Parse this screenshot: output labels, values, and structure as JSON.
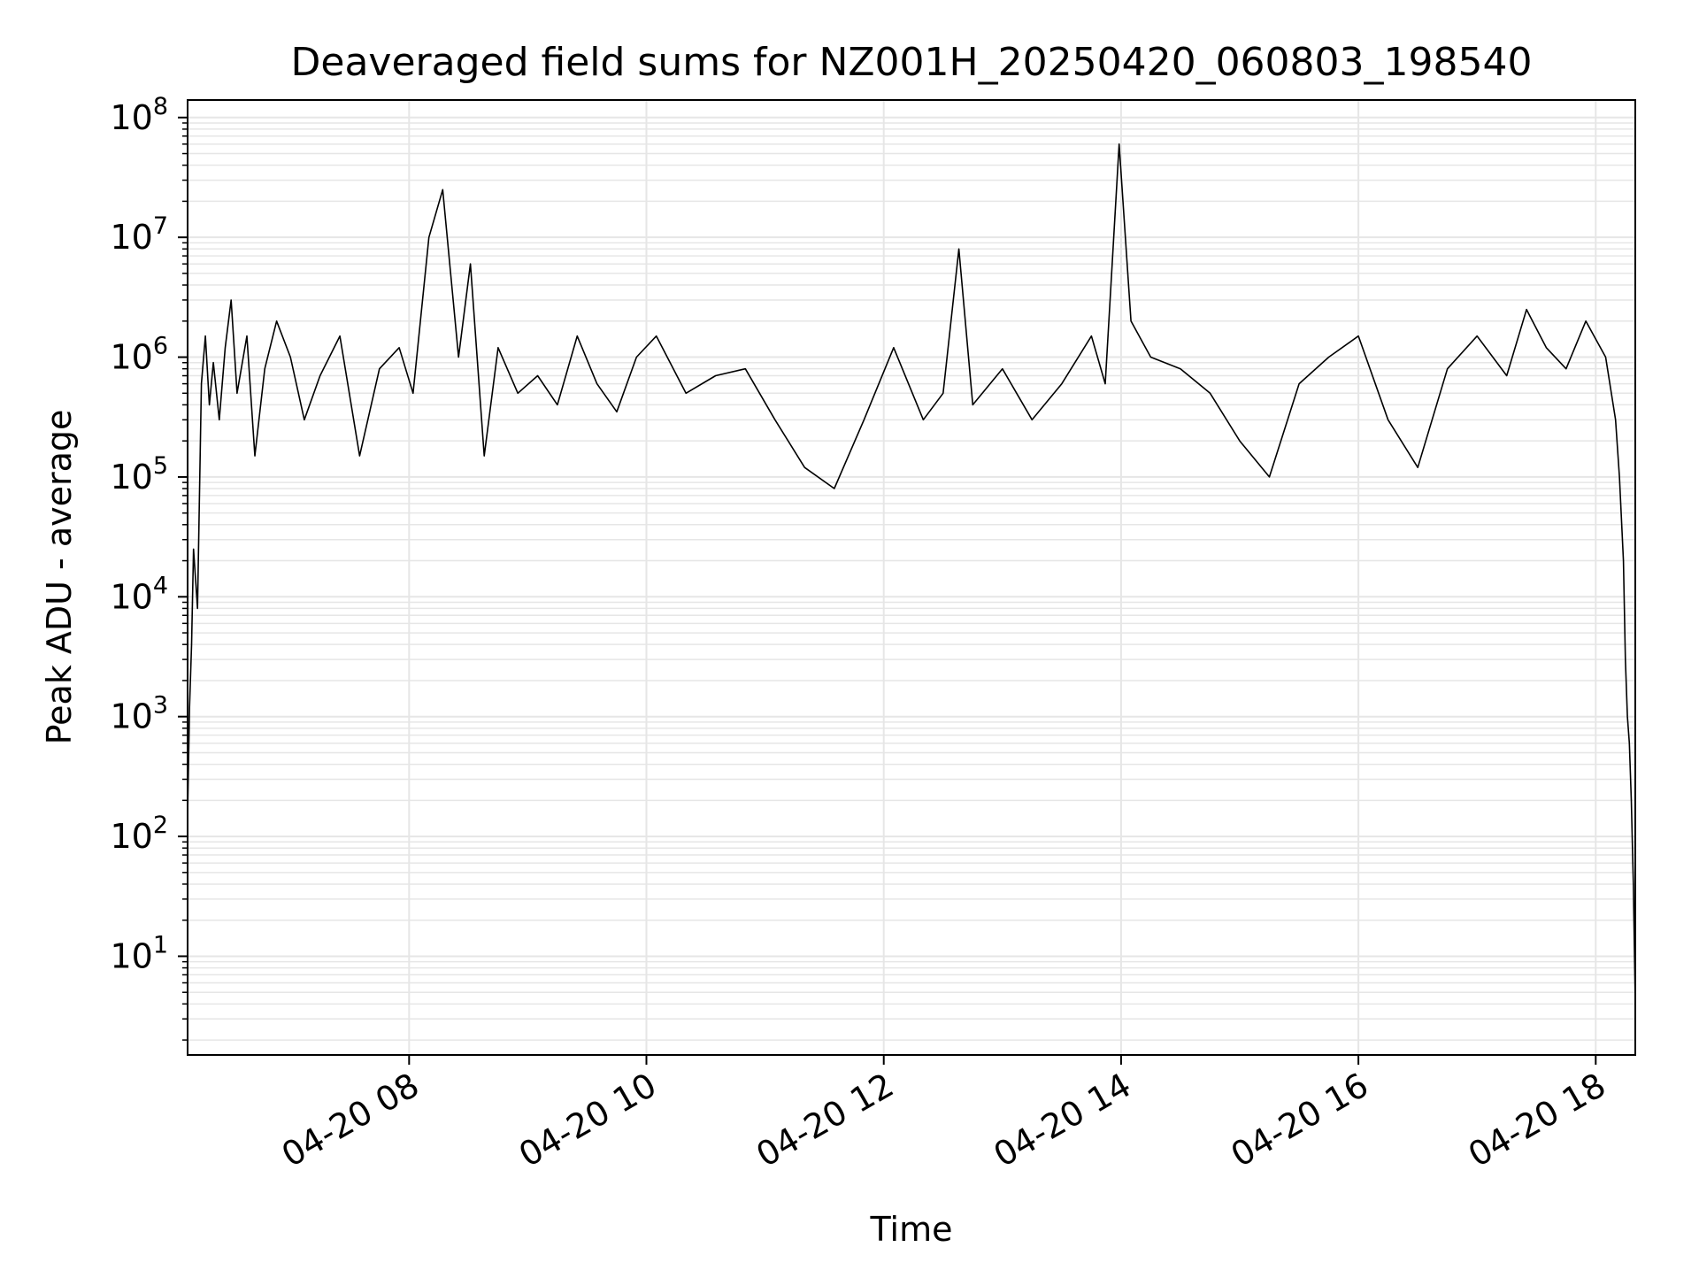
{
  "chart_data": {
    "type": "line",
    "title": "Deaveraged field sums for NZ001H_20250420_060803_198540",
    "xlabel": "Time",
    "ylabel": "Peak ADU - average",
    "yscale": "log",
    "ylim": [
      1.5,
      140000000
    ],
    "xlim": [
      "2025-04-20 06:08",
      "2025-04-20 18:20"
    ],
    "grid": true,
    "legend": "none",
    "colors": {
      "line": "#000000",
      "grid": "#e6e6e6",
      "axes": "#000000"
    },
    "x_ticks": [
      {
        "at": "2025-04-20 08:00",
        "label": "04-20 08"
      },
      {
        "at": "2025-04-20 10:00",
        "label": "04-20 10"
      },
      {
        "at": "2025-04-20 12:00",
        "label": "04-20 12"
      },
      {
        "at": "2025-04-20 14:00",
        "label": "04-20 14"
      },
      {
        "at": "2025-04-20 16:00",
        "label": "04-20 16"
      },
      {
        "at": "2025-04-20 18:00",
        "label": "04-20 18"
      }
    ],
    "y_ticks": [
      {
        "value": 10,
        "base": "10",
        "exp": "1"
      },
      {
        "value": 100,
        "base": "10",
        "exp": "2"
      },
      {
        "value": 1000,
        "base": "10",
        "exp": "3"
      },
      {
        "value": 10000,
        "base": "10",
        "exp": "4"
      },
      {
        "value": 100000,
        "base": "10",
        "exp": "5"
      },
      {
        "value": 1000000,
        "base": "10",
        "exp": "6"
      },
      {
        "value": 10000000,
        "base": "10",
        "exp": "7"
      },
      {
        "value": 100000000,
        "base": "10",
        "exp": "8"
      }
    ],
    "series": [
      {
        "x": [
          "2025-04-20 06:08",
          "2025-04-20 06:09",
          "2025-04-20 06:10",
          "2025-04-20 06:11",
          "2025-04-20 06:13",
          "2025-04-20 06:15",
          "2025-04-20 06:17",
          "2025-04-20 06:19",
          "2025-04-20 06:21",
          "2025-04-20 06:24",
          "2025-04-20 06:27",
          "2025-04-20 06:30",
          "2025-04-20 06:33",
          "2025-04-20 06:38",
          "2025-04-20 06:42",
          "2025-04-20 06:47",
          "2025-04-20 06:53",
          "2025-04-20 07:00",
          "2025-04-20 07:07",
          "2025-04-20 07:15",
          "2025-04-20 07:25",
          "2025-04-20 07:35",
          "2025-04-20 07:45",
          "2025-04-20 07:55",
          "2025-04-20 08:02",
          "2025-04-20 08:10",
          "2025-04-20 08:17",
          "2025-04-20 08:25",
          "2025-04-20 08:31",
          "2025-04-20 08:38",
          "2025-04-20 08:45",
          "2025-04-20 08:55",
          "2025-04-20 09:05",
          "2025-04-20 09:15",
          "2025-04-20 09:25",
          "2025-04-20 09:35",
          "2025-04-20 09:45",
          "2025-04-20 09:55",
          "2025-04-20 10:05",
          "2025-04-20 10:20",
          "2025-04-20 10:35",
          "2025-04-20 10:50",
          "2025-04-20 11:05",
          "2025-04-20 11:20",
          "2025-04-20 11:35",
          "2025-04-20 11:50",
          "2025-04-20 12:05",
          "2025-04-20 12:20",
          "2025-04-20 12:30",
          "2025-04-20 12:38",
          "2025-04-20 12:45",
          "2025-04-20 13:00",
          "2025-04-20 13:15",
          "2025-04-20 13:30",
          "2025-04-20 13:45",
          "2025-04-20 13:52",
          "2025-04-20 13:59",
          "2025-04-20 14:05",
          "2025-04-20 14:15",
          "2025-04-20 14:30",
          "2025-04-20 14:45",
          "2025-04-20 15:00",
          "2025-04-20 15:15",
          "2025-04-20 15:30",
          "2025-04-20 15:45",
          "2025-04-20 16:00",
          "2025-04-20 16:15",
          "2025-04-20 16:30",
          "2025-04-20 16:45",
          "2025-04-20 17:00",
          "2025-04-20 17:15",
          "2025-04-20 17:25",
          "2025-04-20 17:35",
          "2025-04-20 17:45",
          "2025-04-20 17:55",
          "2025-04-20 18:05",
          "2025-04-20 18:10",
          "2025-04-20 18:12",
          "2025-04-20 18:14",
          "2025-04-20 18:15",
          "2025-04-20 18:16",
          "2025-04-20 18:17",
          "2025-04-20 18:18",
          "2025-04-20 18:19",
          "2025-04-20 18:20"
        ],
        "y": [
          150,
          1200,
          4000,
          25000,
          8000,
          600000,
          1500000,
          400000,
          900000,
          300000,
          1200000,
          3000000,
          500000,
          1500000,
          150000,
          800000,
          2000000,
          1000000,
          300000,
          700000,
          1500000,
          150000,
          800000,
          1200000,
          500000,
          10000000,
          25000000,
          1000000,
          6000000,
          150000,
          1200000,
          500000,
          700000,
          400000,
          1500000,
          600000,
          350000,
          1000000,
          1500000,
          500000,
          700000,
          800000,
          300000,
          120000,
          80000,
          300000,
          1200000,
          300000,
          500000,
          8000000,
          400000,
          800000,
          300000,
          600000,
          1500000,
          600000,
          60000000,
          2000000,
          1000000,
          800000,
          500000,
          200000,
          100000,
          600000,
          1000000,
          1500000,
          300000,
          120000,
          800000,
          1500000,
          700000,
          2500000,
          1200000,
          800000,
          2000000,
          1000000,
          300000,
          100000,
          20000,
          3000,
          1000,
          600,
          200,
          40,
          4
        ]
      }
    ]
  }
}
